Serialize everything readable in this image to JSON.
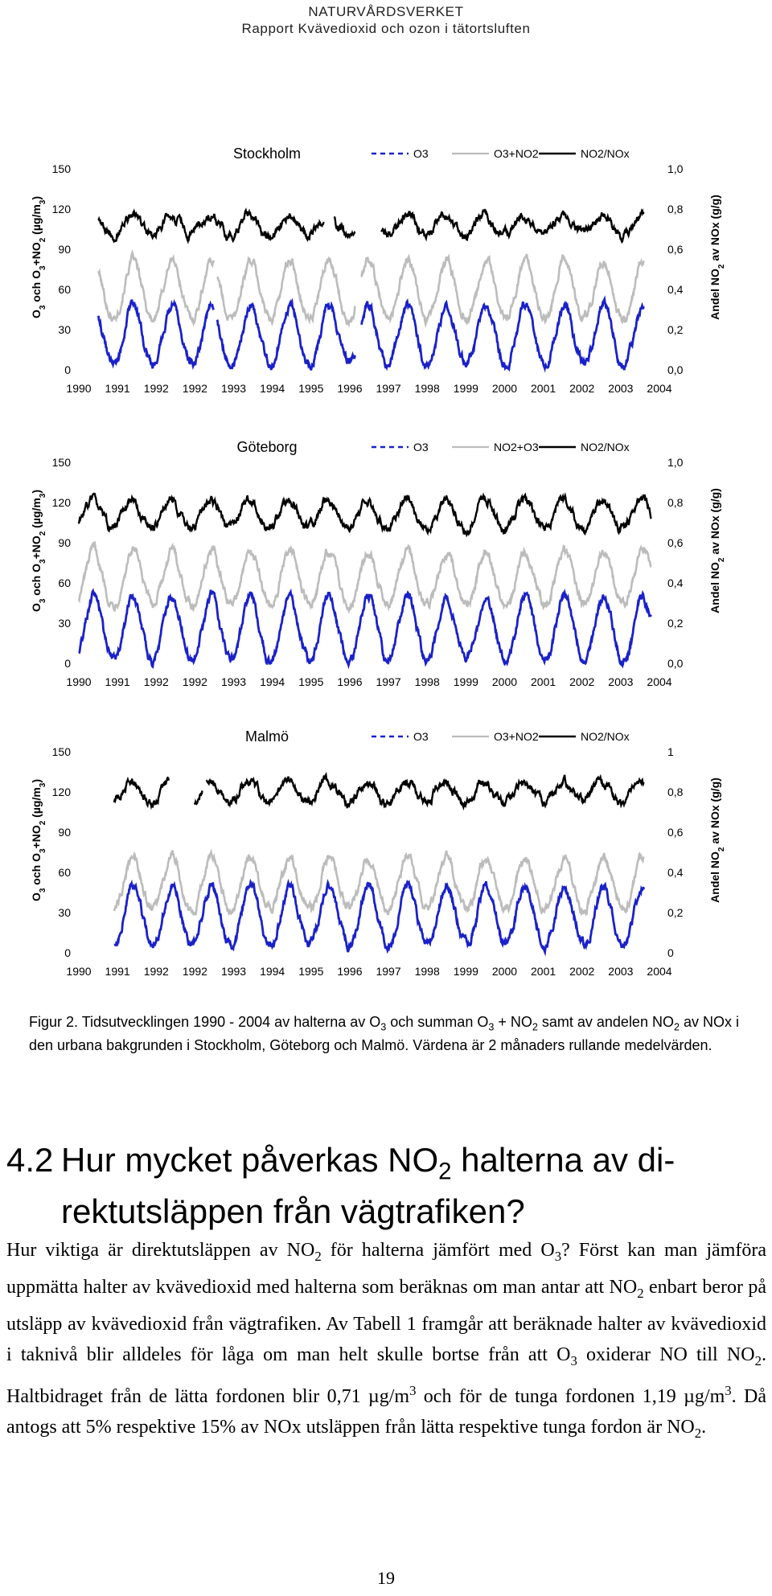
{
  "header": {
    "org": "NATURVÅRDSVERKET",
    "report": "Rapport Kvävedioxid och ozon i tätortsluften"
  },
  "colors": {
    "o3": "#1a21c9",
    "sum": "#bcbcbc",
    "ratio": "#000000"
  },
  "chart_data": [
    {
      "type": "line",
      "title": "Stockholm",
      "legend": [
        "O3",
        "O3+NO2",
        "NO2/NOx"
      ],
      "legend_position": "top-right",
      "ylabel_left_parts": [
        "O",
        "3",
        " och O",
        "3",
        "+NO",
        "2",
        " (µg/m",
        "3",
        ")"
      ],
      "ylabel_right_parts": [
        "Andel NO",
        "2",
        " av NOx (g/g)"
      ],
      "y_left_ticks": [
        "0",
        "30",
        "60",
        "90",
        "120",
        "150"
      ],
      "y_right_ticks": [
        "0,0",
        "0,2",
        "0,4",
        "0,6",
        "0,8",
        "1,0"
      ],
      "x_ticks": [
        "1990",
        "1991",
        "1992",
        "1992",
        "1993",
        "1994",
        "1995",
        "1996",
        "1997",
        "1998",
        "1999",
        "2000",
        "2001",
        "2002",
        "2003",
        "2004"
      ],
      "ylim_left": [
        0,
        150
      ],
      "ylim_right": [
        0,
        1
      ],
      "xlim": [
        1990.0,
        2004.8
      ],
      "grid": false,
      "series_o3_params": {
        "start": 1990.5,
        "end": 2004.4,
        "base": 24,
        "amp": 20,
        "phase": 0.38,
        "gaps": [
          [
            1993.45,
            1993.52
          ],
          [
            1997.05,
            1997.2
          ]
        ]
      },
      "series_sum_params": {
        "start": 1990.5,
        "end": 2004.4,
        "base": 58,
        "amp": 20,
        "phase": 0.38,
        "gaps": [
          [
            1993.45,
            1993.52
          ],
          [
            1997.05,
            1997.2
          ]
        ]
      },
      "series_ratio_params": {
        "start": 1990.5,
        "end": 2004.4,
        "base": 0.72,
        "amp": 0.05,
        "gaps": [
          [
            1996.25,
            1996.5
          ],
          [
            1997.05,
            1997.7
          ]
        ]
      }
    },
    {
      "type": "line",
      "title": "Göteborg",
      "legend": [
        "O3",
        "NO2+O3",
        "NO2/NOx"
      ],
      "legend_position": "top-right",
      "ylabel_left_parts": [
        "O",
        "3",
        " och O",
        "3",
        "+NO",
        "2",
        " (µg/m",
        "3",
        ")"
      ],
      "ylabel_right_parts": [
        "Andel NO",
        "2",
        " av NOx (g/g)"
      ],
      "y_left_ticks": [
        "0",
        "30",
        "60",
        "90",
        "120",
        "150"
      ],
      "y_right_ticks": [
        "0,0",
        "0,2",
        "0,4",
        "0,6",
        "0,8",
        "1,0"
      ],
      "x_ticks": [
        "1990",
        "1991",
        "1992",
        "1992",
        "1993",
        "1994",
        "1995",
        "1996",
        "1997",
        "1998",
        "1999",
        "2000",
        "2001",
        "2002",
        "2003",
        "2004"
      ],
      "ylim_left": [
        0,
        150
      ],
      "ylim_right": [
        0,
        1
      ],
      "xlim": [
        1990.0,
        2004.8
      ],
      "grid": false,
      "series_o3_params": {
        "start": 1990.0,
        "end": 2004.6,
        "base": 24,
        "amp": 22,
        "phase": 0.38,
        "gaps": []
      },
      "series_sum_params": {
        "start": 1990.0,
        "end": 2004.6,
        "base": 62,
        "amp": 18,
        "phase": 0.38,
        "gaps": []
      },
      "series_ratio_params": {
        "start": 1990.0,
        "end": 2004.6,
        "base": 0.74,
        "amp": 0.07,
        "gaps": []
      }
    },
    {
      "type": "line",
      "title": "Malmö",
      "legend": [
        "O3",
        "O3+NO2",
        "NO2/NOx"
      ],
      "legend_position": "top-right",
      "ylabel_left_parts": [
        "O",
        "3",
        " och O",
        "3",
        "+NO",
        "2",
        " (µg/m",
        "3",
        ")"
      ],
      "ylabel_right_parts": [
        "Andel NO",
        "2",
        " av NOx (g/g)"
      ],
      "y_left_ticks": [
        "0",
        "30",
        "60",
        "90",
        "120",
        "150"
      ],
      "y_right_ticks": [
        "0",
        "0,2",
        "0,4",
        "0,6",
        "0,8",
        "1"
      ],
      "x_ticks": [
        "1990",
        "1991",
        "1992",
        "1992",
        "1993",
        "1994",
        "1995",
        "1996",
        "1997",
        "1998",
        "1999",
        "2000",
        "2001",
        "2002",
        "2003",
        "2004"
      ],
      "ylim_left": [
        0,
        150
      ],
      "ylim_right": [
        0,
        1
      ],
      "xlim": [
        1990.0,
        2004.8
      ],
      "grid": false,
      "series_o3_params": {
        "start": 1990.9,
        "end": 2004.4,
        "base": 26,
        "amp": 20,
        "phase": 0.38,
        "gaps": []
      },
      "series_sum_params": {
        "start": 1990.9,
        "end": 2004.4,
        "base": 50,
        "amp": 18,
        "phase": 0.38,
        "gaps": []
      },
      "series_ratio_params": {
        "start": 1990.9,
        "end": 2004.4,
        "base": 0.8,
        "amp": 0.05,
        "gaps": [
          [
            1992.3,
            1992.95
          ],
          [
            1993.15,
            1993.25
          ]
        ]
      }
    }
  ],
  "caption": {
    "parts": [
      "Figur 2. Tidsutvecklingen 1990 - 2004 av halterna av O",
      "3",
      " och summan O",
      "3",
      " + NO",
      "2",
      " samt av andelen NO",
      "2",
      " av NOx i den urbana bakgrunden i Stockholm, Göteborg och Malmö. Värdena är 2 månaders rullande medelvärden."
    ]
  },
  "section": {
    "number": "4.2",
    "title_parts": [
      "Hur mycket påverkas NO",
      "2",
      " halterna av di-"
    ],
    "title_line2": "rektutsläppen från vägtrafiken?"
  },
  "body": {
    "parts": [
      "Hur viktiga är direktutsläppen av NO",
      "2",
      " för halterna jämfört med O",
      "3",
      "? Först kan man jämföra uppmätta halter av kvävedioxid med halterna som beräknas om man antar att NO",
      "2",
      " enbart beror på utsläpp av kvävedioxid från vägtrafiken. Av Tabell 1 framgår att beräknade halter av kvävedioxid i taknivå blir alldeles för låga om man helt skulle bortse från att O",
      "3",
      " oxiderar NO till NO",
      "2",
      ". Haltbidraget från de lätta fordonen blir 0,71 µg/m",
      "3",
      " och för de tunga fordonen 1,19 µg/m",
      "3",
      ". Då antogs att 5% respektive 15% av NOx utsläppen från lätta respektive tunga fordon är NO",
      "2",
      "."
    ]
  },
  "page_number": "19"
}
